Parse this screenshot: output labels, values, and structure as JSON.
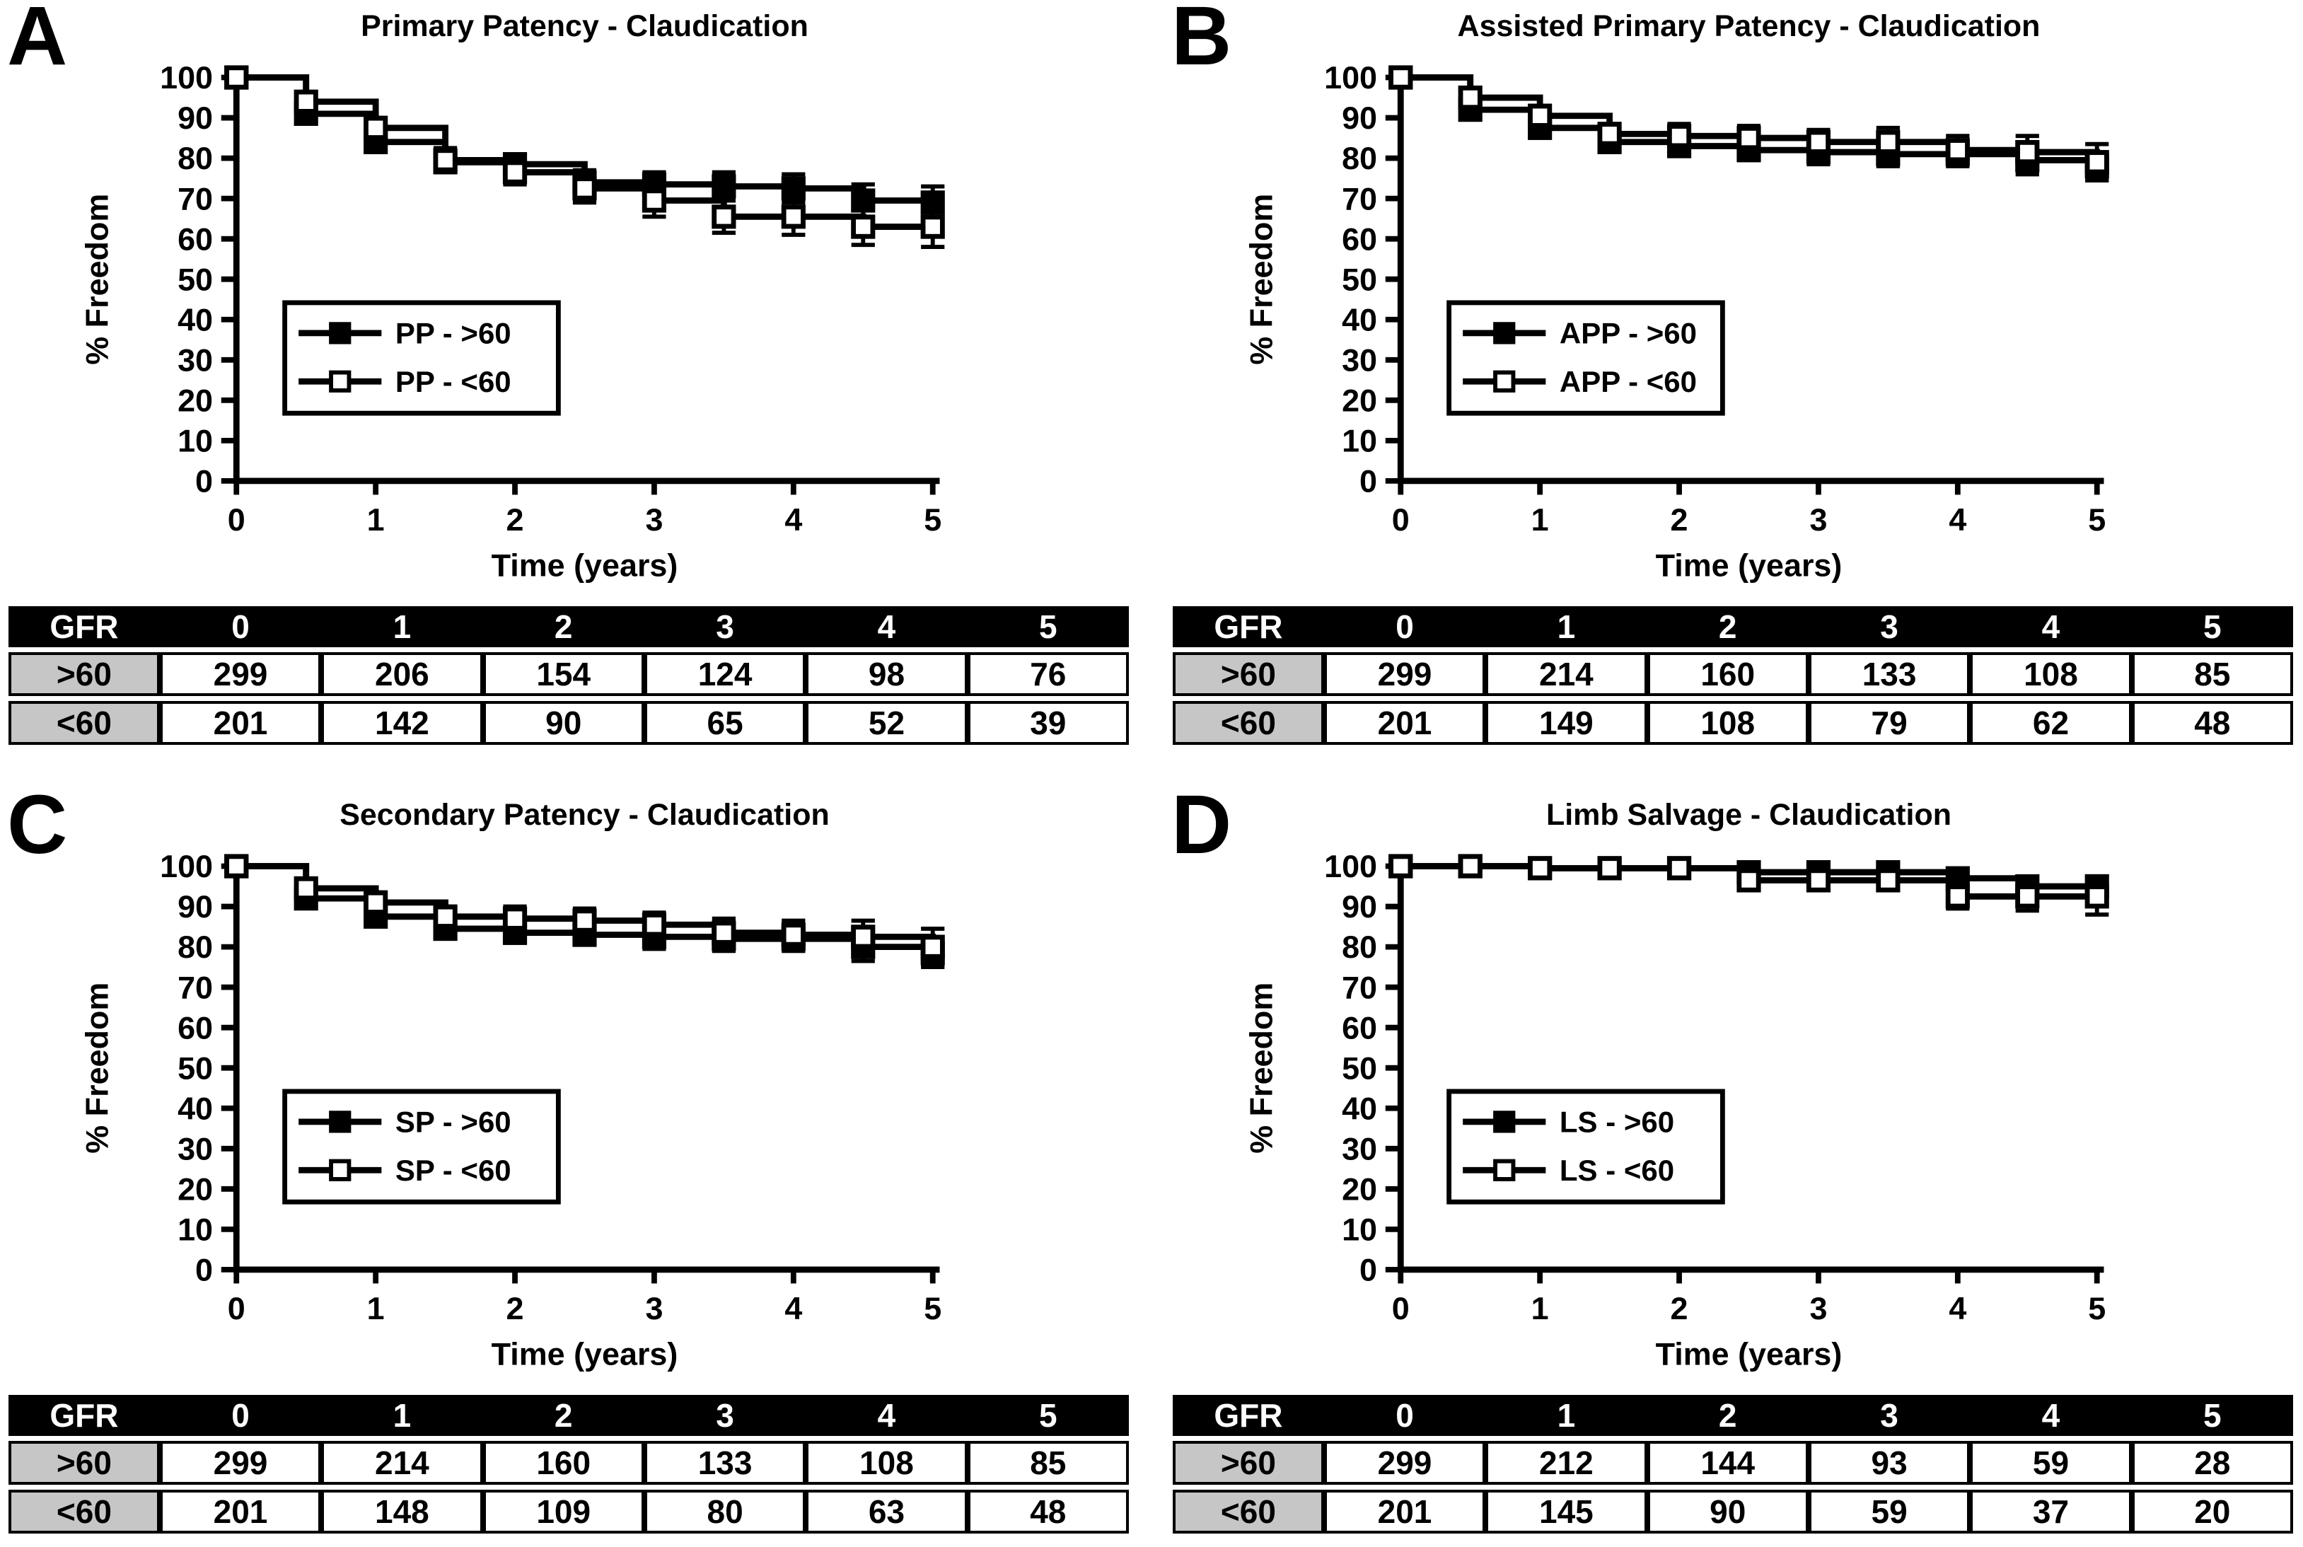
{
  "colors": {
    "foreground": "#000000",
    "background": "#ffffff",
    "table_header_bg": "#000000",
    "table_header_text": "#ffffff",
    "table_rowlabel_bg": "#c6c6c6"
  },
  "panels": [
    {
      "letter": "A",
      "table": {
        "header": [
          "GFR",
          "0",
          "1",
          "2",
          "3",
          "4",
          "5"
        ],
        "rows": [
          {
            "label": ">60",
            "values": [
              "299",
              "206",
              "154",
              "124",
              "98",
              "76"
            ]
          },
          {
            "label": "<60",
            "values": [
              "201",
              "142",
              "90",
              "65",
              "52",
              "39"
            ]
          }
        ]
      }
    },
    {
      "letter": "B",
      "table": {
        "header": [
          "GFR",
          "0",
          "1",
          "2",
          "3",
          "4",
          "5"
        ],
        "rows": [
          {
            "label": ">60",
            "values": [
              "299",
              "214",
              "160",
              "133",
              "108",
              "85"
            ]
          },
          {
            "label": "<60",
            "values": [
              "201",
              "149",
              "108",
              "79",
              "62",
              "48"
            ]
          }
        ]
      }
    },
    {
      "letter": "C",
      "table": {
        "header": [
          "GFR",
          "0",
          "1",
          "2",
          "3",
          "4",
          "5"
        ],
        "rows": [
          {
            "label": ">60",
            "values": [
              "299",
              "214",
              "160",
              "133",
              "108",
              "85"
            ]
          },
          {
            "label": "<60",
            "values": [
              "201",
              "148",
              "109",
              "80",
              "63",
              "48"
            ]
          }
        ]
      }
    },
    {
      "letter": "D",
      "table": {
        "header": [
          "GFR",
          "0",
          "1",
          "2",
          "3",
          "4",
          "5"
        ],
        "rows": [
          {
            "label": ">60",
            "values": [
              "299",
              "212",
              "144",
              "93",
              "59",
              "28"
            ]
          },
          {
            "label": "<60",
            "values": [
              "201",
              "145",
              "90",
              "59",
              "37",
              "20"
            ]
          }
        ]
      }
    }
  ],
  "chart_data": [
    {
      "type": "line",
      "subtype": "kaplan-meier-step",
      "title": "Primary Patency - Claudication",
      "xlabel": "Time (years)",
      "ylabel": "% Freedom",
      "xlim": [
        0,
        5
      ],
      "ylim": [
        0,
        100
      ],
      "xticks": [
        0,
        1,
        2,
        3,
        4,
        5
      ],
      "yticks": [
        0,
        10,
        20,
        30,
        40,
        50,
        60,
        70,
        80,
        90,
        100
      ],
      "grid": false,
      "legend_position": "inside-left-middle",
      "x": [
        0,
        0.5,
        1,
        1.5,
        2,
        2.5,
        3,
        3.5,
        4,
        4.5,
        5
      ],
      "series": [
        {
          "name": "PP - >60",
          "marker": "filled-square",
          "color": "#000000",
          "values": [
            100,
            91,
            84,
            79,
            78.5,
            74,
            73.5,
            73,
            72.5,
            69.5,
            69
          ],
          "errors": [
            0,
            2,
            2.5,
            2.5,
            2.5,
            3,
            3,
            3.5,
            3.5,
            4,
            4
          ]
        },
        {
          "name": "PP - <60",
          "marker": "open-square",
          "color": "#000000",
          "values": [
            100,
            94,
            87.5,
            79.5,
            76.5,
            72.5,
            69.5,
            65.5,
            65.5,
            63,
            63
          ],
          "errors": [
            0,
            2,
            2.5,
            3,
            3,
            3.5,
            4,
            4,
            4.5,
            4.5,
            5
          ]
        }
      ]
    },
    {
      "type": "line",
      "subtype": "kaplan-meier-step",
      "title": "Assisted Primary Patency - Claudication",
      "xlabel": "Time (years)",
      "ylabel": "% Freedom",
      "xlim": [
        0,
        5
      ],
      "ylim": [
        0,
        100
      ],
      "xticks": [
        0,
        1,
        2,
        3,
        4,
        5
      ],
      "yticks": [
        0,
        10,
        20,
        30,
        40,
        50,
        60,
        70,
        80,
        90,
        100
      ],
      "grid": false,
      "legend_position": "inside-left-middle",
      "x": [
        0,
        0.5,
        1,
        1.5,
        2,
        2.5,
        3,
        3.5,
        4,
        4.5,
        5
      ],
      "series": [
        {
          "name": "APP - >60",
          "marker": "filled-square",
          "color": "#000000",
          "values": [
            100,
            92,
            87.5,
            84,
            83,
            82,
            81.5,
            81,
            81,
            79.5,
            78
          ],
          "errors": [
            0,
            2,
            2,
            2.5,
            2.5,
            2.5,
            3,
            3,
            3,
            3.5,
            3.5
          ]
        },
        {
          "name": "APP - <60",
          "marker": "open-square",
          "color": "#000000",
          "values": [
            100,
            95,
            90.5,
            86,
            85.5,
            85,
            84,
            84,
            82,
            81.5,
            79
          ],
          "errors": [
            0,
            2,
            2.5,
            2.5,
            3,
            3,
            3,
            3.5,
            3.5,
            4,
            4.5
          ]
        }
      ]
    },
    {
      "type": "line",
      "subtype": "kaplan-meier-step",
      "title": "Secondary Patency - Claudication",
      "xlabel": "Time (years)",
      "ylabel": "% Freedom",
      "xlim": [
        0,
        5
      ],
      "ylim": [
        0,
        100
      ],
      "xticks": [
        0,
        1,
        2,
        3,
        4,
        5
      ],
      "yticks": [
        0,
        10,
        20,
        30,
        40,
        50,
        60,
        70,
        80,
        90,
        100
      ],
      "grid": false,
      "legend_position": "inside-left-middle",
      "x": [
        0,
        0.5,
        1,
        1.5,
        2,
        2.5,
        3,
        3.5,
        4,
        4.5,
        5
      ],
      "series": [
        {
          "name": "SP - >60",
          "marker": "filled-square",
          "color": "#000000",
          "values": [
            100,
            92,
            87.5,
            84.5,
            83.5,
            83,
            82.5,
            82,
            82,
            80,
            78.5
          ],
          "errors": [
            0,
            2,
            2,
            2.5,
            2.5,
            2.5,
            3,
            3,
            3,
            3.5,
            3.5
          ]
        },
        {
          "name": "SP - <60",
          "marker": "open-square",
          "color": "#000000",
          "values": [
            100,
            94.5,
            91,
            87.5,
            87,
            86.5,
            85.5,
            83.5,
            83,
            82.5,
            80
          ],
          "errors": [
            0,
            2,
            2.5,
            2.5,
            3,
            3,
            3,
            3.5,
            3.5,
            4,
            4.5
          ]
        }
      ]
    },
    {
      "type": "line",
      "subtype": "kaplan-meier-step",
      "title": "Limb Salvage - Claudication",
      "xlabel": "Time (years)",
      "ylabel": "% Freedom",
      "xlim": [
        0,
        5
      ],
      "ylim": [
        0,
        100
      ],
      "xticks": [
        0,
        1,
        2,
        3,
        4,
        5
      ],
      "yticks": [
        0,
        10,
        20,
        30,
        40,
        50,
        60,
        70,
        80,
        90,
        100
      ],
      "grid": false,
      "legend_position": "inside-left-middle",
      "x": [
        0,
        0.5,
        1,
        1.5,
        2,
        2.5,
        3,
        3.5,
        4,
        4.5,
        5
      ],
      "series": [
        {
          "name": "LS - >60",
          "marker": "filled-square",
          "color": "#000000",
          "values": [
            100,
            100,
            99.5,
            99.5,
            99.5,
            98.5,
            98.5,
            98.5,
            97,
            95,
            95
          ],
          "errors": [
            0,
            0,
            0,
            0,
            0,
            1,
            1,
            1.5,
            1.5,
            2,
            2.5
          ]
        },
        {
          "name": "LS - <60",
          "marker": "open-square",
          "color": "#000000",
          "values": [
            100,
            100,
            99.5,
            99.5,
            99.5,
            96.5,
            96.5,
            96.5,
            92.5,
            92.5,
            92.5
          ],
          "errors": [
            0,
            0,
            0,
            0,
            0,
            1.5,
            1.5,
            2,
            3,
            3.5,
            4.5
          ]
        }
      ]
    }
  ]
}
